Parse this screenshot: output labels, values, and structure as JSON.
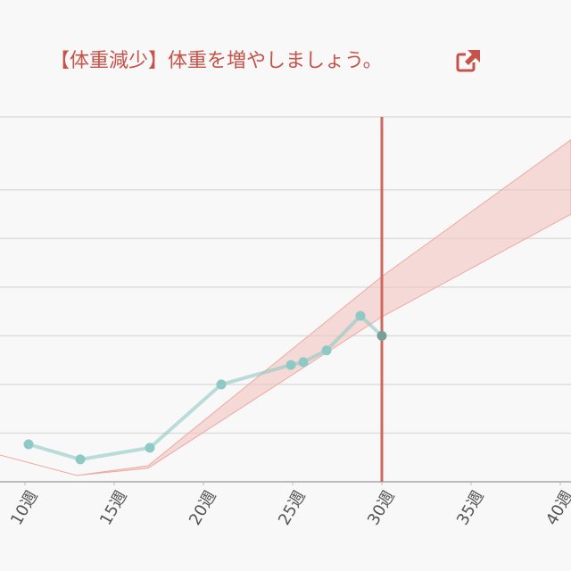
{
  "chart_data": {
    "type": "line",
    "title": "【体重減少】体重を増やしましょう。",
    "xlim": [
      8.6,
      40.6
    ],
    "xticks": [
      {
        "value": 10,
        "label": "10週"
      },
      {
        "value": 15,
        "label": "15週"
      },
      {
        "value": 20,
        "label": "20週"
      },
      {
        "value": 25,
        "label": "25週"
      },
      {
        "value": 30,
        "label": "30週"
      },
      {
        "value": 35,
        "label": "35週"
      },
      {
        "value": 40,
        "label": "40週"
      }
    ],
    "ylim": [
      0,
      7.5
    ],
    "yticks": [
      0,
      1,
      2,
      3,
      4,
      5,
      6,
      7.5
    ],
    "grid": true,
    "current_week": 30,
    "current_week_color": "#d0675f",
    "band": {
      "color": "#f2c4c0",
      "x": [
        8.6,
        12.9,
        16.9,
        30,
        40.6
      ],
      "upper": [
        0.55,
        0.13,
        0.33,
        4.22,
        7.03
      ],
      "lower": [
        0.55,
        0.13,
        0.28,
        3.39,
        5.5
      ]
    },
    "series": [
      {
        "color": "#8fc9c5",
        "x": [
          10.2,
          13.1,
          17,
          21,
          24.9,
          25.6,
          26.9,
          28.8,
          30
        ],
        "values": [
          0.77,
          0.46,
          0.7,
          2.0,
          2.4,
          2.46,
          2.7,
          3.41,
          3.0
        ]
      }
    ]
  }
}
